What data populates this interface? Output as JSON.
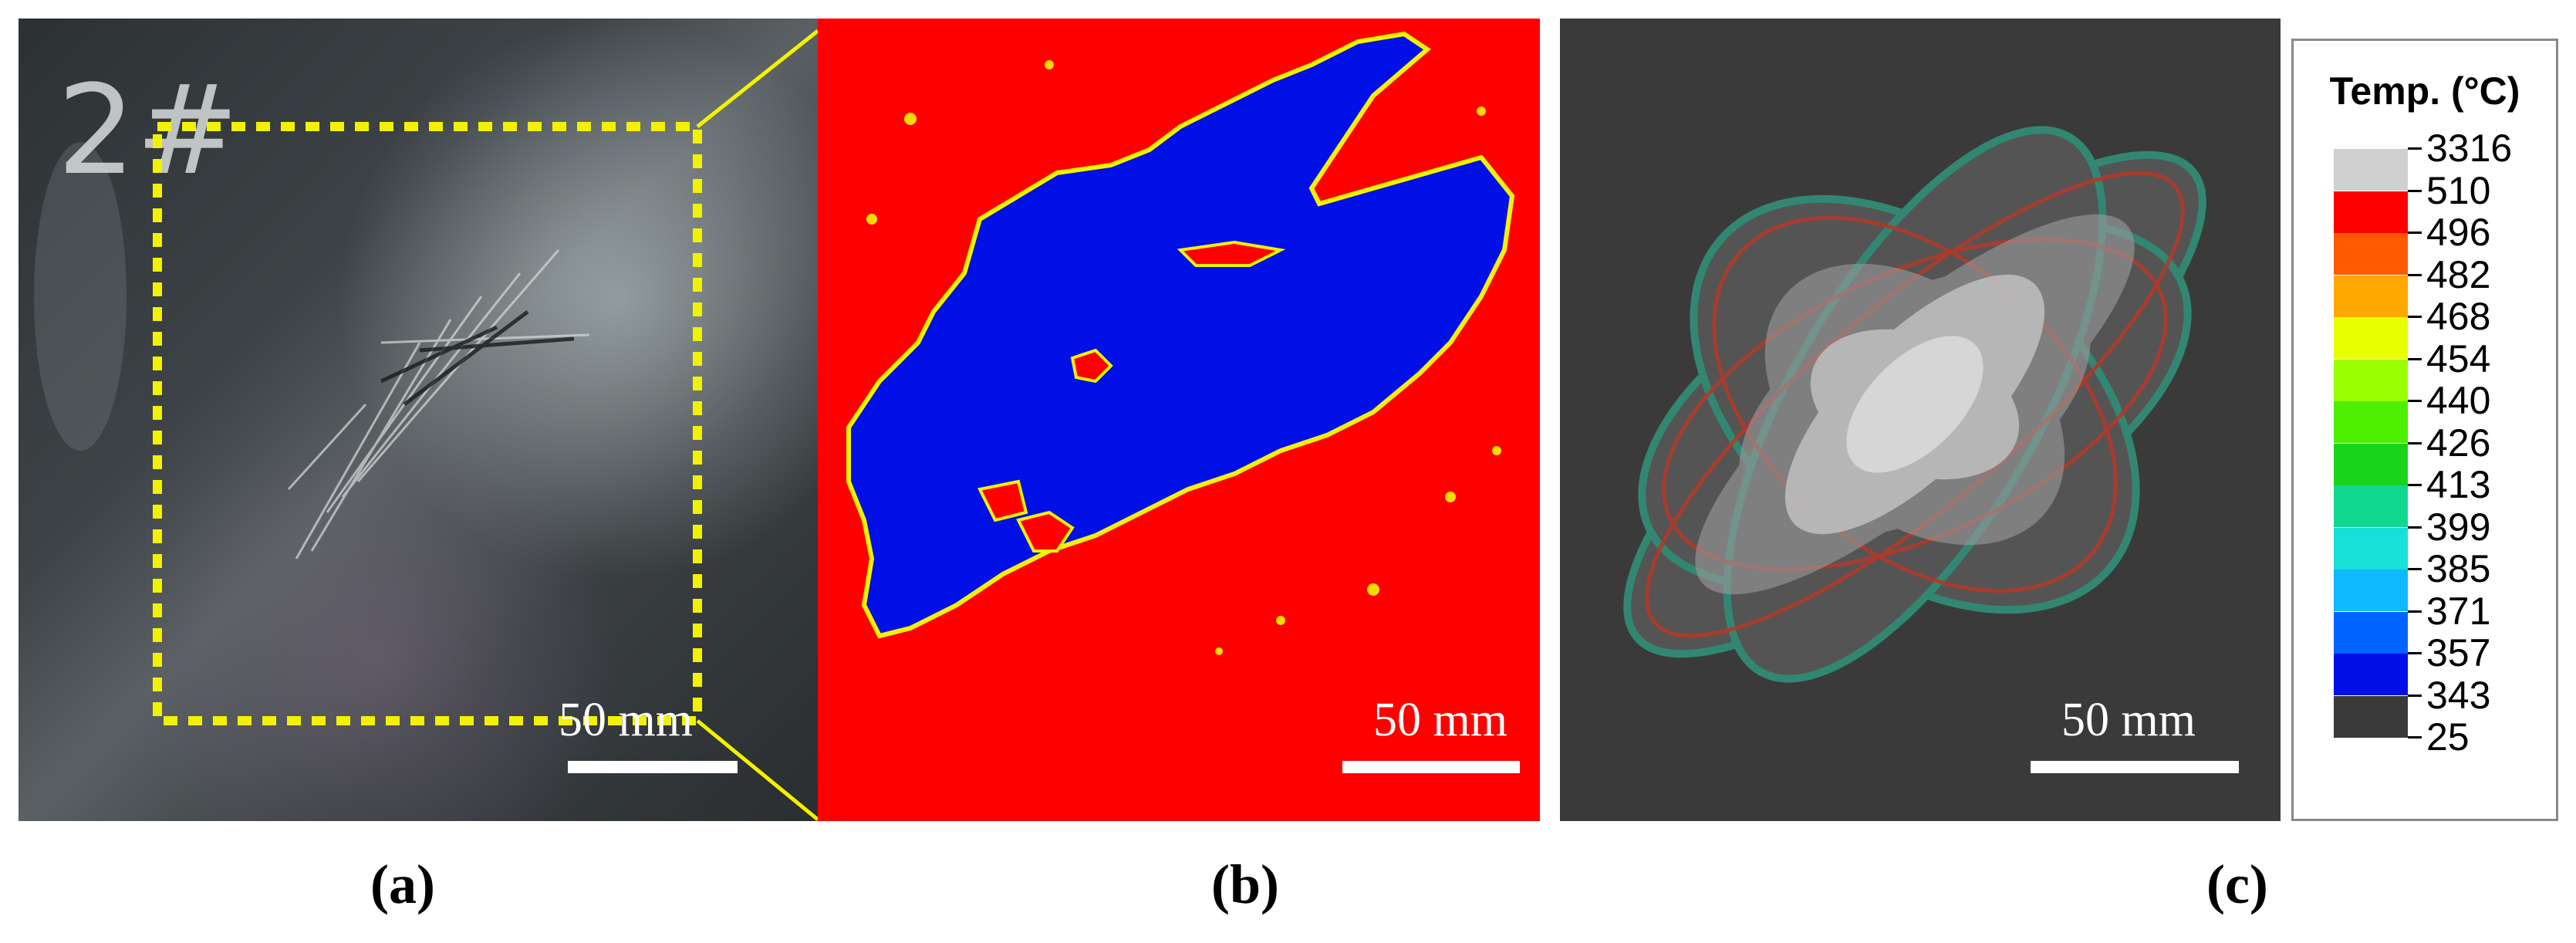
{
  "panel_a": {
    "sample_label": "2#",
    "scale_label": "50 mm",
    "caption": "(a)"
  },
  "panel_b": {
    "scale_label": "50 mm",
    "caption": "(b)"
  },
  "panel_c": {
    "scale_label": "50 mm",
    "caption": "(c)"
  },
  "legend": {
    "title": "Temp. (°C)",
    "values": [
      "3316",
      "510",
      "496",
      "482",
      "468",
      "454",
      "440",
      "426",
      "413",
      "399",
      "385",
      "371",
      "357",
      "343",
      "25"
    ],
    "colors": [
      "#cfcfcf",
      "#ff0000",
      "#ff5a00",
      "#ffa800",
      "#e8ff00",
      "#9aff00",
      "#4cf000",
      "#1ad41a",
      "#10d890",
      "#18e0d8",
      "#10b8ff",
      "#0064ff",
      "#0010e6",
      "#3a3a3a"
    ]
  },
  "colors": {
    "damage_blue": "#0010e6",
    "background_red": "#ff0000",
    "dashed_box_yellow": "#f2f200",
    "panel_c_background": "#3a3a3a"
  }
}
